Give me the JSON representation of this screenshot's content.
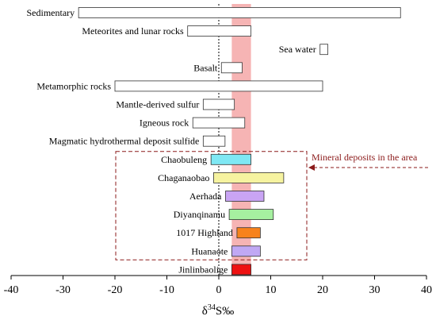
{
  "chart_data": {
    "type": "range-bar",
    "xlabel_main": "δ",
    "xlabel_sup": "34",
    "xlabel_tail": "S‰",
    "xlim": [
      -40,
      40
    ],
    "xticks": [
      -40,
      -30,
      -20,
      -10,
      0,
      10,
      20,
      30,
      40
    ],
    "reference_line_x": 0,
    "highlight_band": {
      "from": 2.5,
      "to": 6.2,
      "color": "#f4a7a7"
    },
    "annotation": "Mineral deposits in the area",
    "bars": [
      {
        "label": "Sedimentary",
        "min": -27,
        "max": 35,
        "color": "#ffffff"
      },
      {
        "label": "Meteorites and lunar rocks",
        "min": -6,
        "max": 6.2,
        "color": "#ffffff"
      },
      {
        "label": "Sea water",
        "min": 19.5,
        "max": 21,
        "color": "#ffffff"
      },
      {
        "label": "Basalt",
        "min": 0.5,
        "max": 4.5,
        "color": "#ffffff"
      },
      {
        "label": "Metamorphic rocks",
        "min": -20,
        "max": 20,
        "color": "#ffffff"
      },
      {
        "label": "Mantle-derived sulfur",
        "min": -3,
        "max": 3,
        "color": "#ffffff"
      },
      {
        "label": "Igneous rock",
        "min": -5,
        "max": 5,
        "color": "#ffffff"
      },
      {
        "label": "Magmatic hydrothermal deposit sulfide",
        "min": -3,
        "max": 1.2,
        "color": "#ffffff"
      },
      {
        "label": "Chaobuleng",
        "min": -1.5,
        "max": 6.2,
        "color": "#7fe8f4"
      },
      {
        "label": "Chaganaobao",
        "min": -1,
        "max": 12.5,
        "color": "#f6f3a0"
      },
      {
        "label": "Aerhada",
        "min": 1.3,
        "max": 8.7,
        "color": "#c9a4f4"
      },
      {
        "label": "Diyanqinamu",
        "min": 2,
        "max": 10.5,
        "color": "#a6f0a0"
      },
      {
        "label": "1017 Highland",
        "min": 3.5,
        "max": 8,
        "color": "#f7821c"
      },
      {
        "label": "Huanaote",
        "min": 2.5,
        "max": 8,
        "color": "#c0a8f4"
      },
      {
        "label": "Jinlinbaolige",
        "min": 2.5,
        "max": 6.2,
        "color": "#ee1111"
      }
    ]
  }
}
